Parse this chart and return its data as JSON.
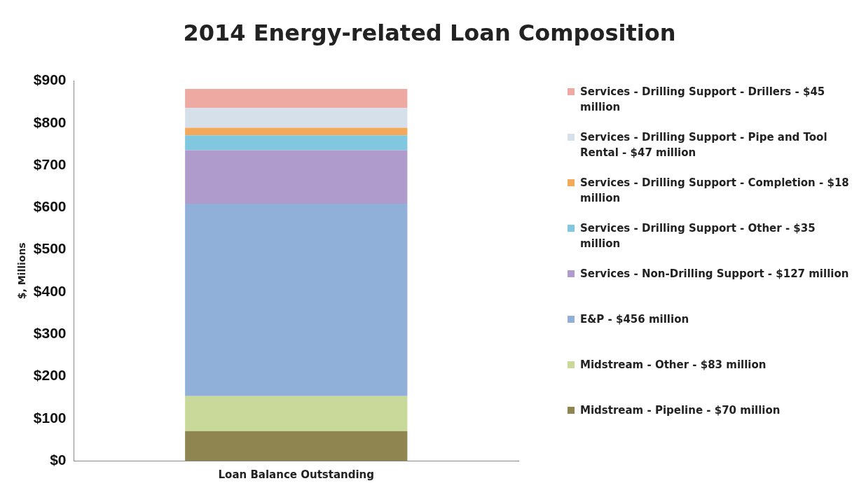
{
  "chart_data": {
    "type": "bar",
    "title": "2014 Energy-related Loan Composition",
    "ylabel": "$, Millions",
    "categories": [
      "Loan Balance Outstanding"
    ],
    "stacked": true,
    "series": [
      {
        "name": "Midstream - Pipeline - $70 million",
        "color": "#8f8550",
        "values": [
          70
        ]
      },
      {
        "name": "Midstream - Other - $83 million",
        "color": "#c9d99a",
        "values": [
          83
        ]
      },
      {
        "name": "E&P - $456 million",
        "color": "#90b0da",
        "values": [
          456
        ]
      },
      {
        "name": "Services - Non-Drilling Support - $127 million",
        "color": "#b09ccc",
        "values": [
          127
        ]
      },
      {
        "name": "Services - Drilling Support - Other - $35 million",
        "color": "#80c8e0",
        "values": [
          35
        ]
      },
      {
        "name": "Services - Drilling Support - Completion - $18 million",
        "color": "#f4a85a",
        "values": [
          18
        ]
      },
      {
        "name": "Services - Drilling Support - Pipe and Tool Rental - $47 million",
        "color": "#d6e0ea",
        "values": [
          47
        ]
      },
      {
        "name": "Services - Drilling Support - Drillers - $45 million",
        "color": "#eeaaa2",
        "values": [
          45
        ]
      }
    ],
    "ylim": [
      0,
      900
    ],
    "yticks": [
      {
        "value": 0,
        "label": "$0"
      },
      {
        "value": 100,
        "label": "$100"
      },
      {
        "value": 200,
        "label": "$200"
      },
      {
        "value": 300,
        "label": "$300"
      },
      {
        "value": 400,
        "label": "$400"
      },
      {
        "value": 500,
        "label": "$500"
      },
      {
        "value": 600,
        "label": "$600"
      },
      {
        "value": 700,
        "label": "$700"
      },
      {
        "value": 800,
        "label": "$800"
      },
      {
        "value": 900,
        "label": "$900"
      }
    ],
    "grid": false,
    "legend": "right"
  }
}
